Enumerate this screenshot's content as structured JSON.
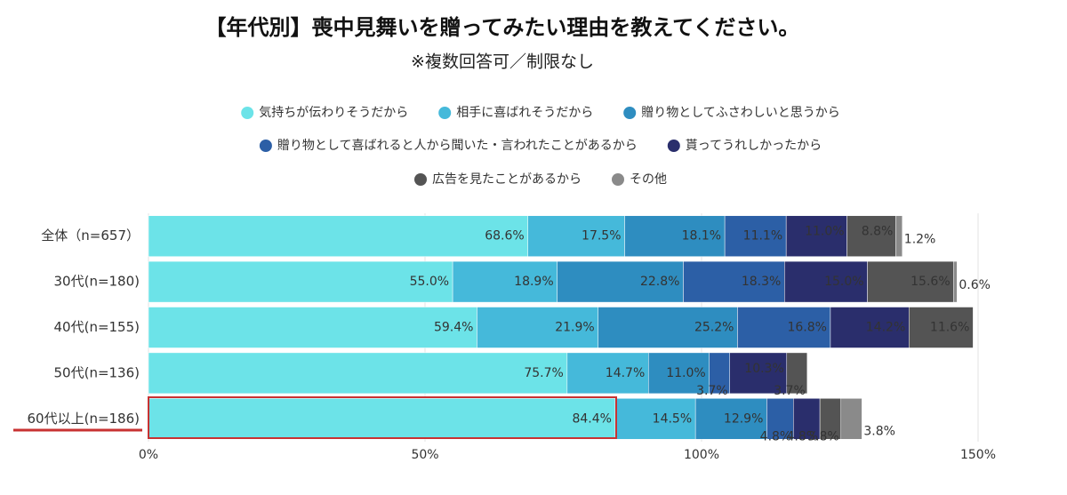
{
  "chart_data": {
    "type": "stacked-bar-horizontal",
    "title": "【年代別】喪中見舞いを贈ってみたい理由を教えてください。",
    "subtitle": "※複数回答可／制限なし",
    "categories": [
      "全体（n=657）",
      "30代(n=180)",
      "40代(n=155)",
      "50代(n=136)",
      "60代以上(n=186)"
    ],
    "series": [
      {
        "name": "気持ちが伝わりそうだから",
        "color": "#6ce3e8",
        "values": [
          68.6,
          55.0,
          59.4,
          75.7,
          84.4
        ],
        "value_labels": [
          "68.6%",
          "55.0%",
          "59.4%",
          "75.7%",
          "84.4%"
        ]
      },
      {
        "name": "相手に喜ばれそうだから",
        "color": "#45b9da",
        "values": [
          17.5,
          18.9,
          21.9,
          14.7,
          14.5
        ],
        "value_labels": [
          "17.5%",
          "18.9%",
          "21.9%",
          "14.7%",
          "14.5%"
        ]
      },
      {
        "name": "贈り物としてふさわしいと思うから",
        "color": "#2e8dc0",
        "values": [
          18.1,
          22.8,
          25.2,
          11.0,
          12.9
        ],
        "value_labels": [
          "18.1%",
          "22.8%",
          "25.2%",
          "11.0%",
          "12.9%"
        ]
      },
      {
        "name": "贈り物として喜ばれると人から聞いた・言われたことがあるから",
        "color": "#2c5fa6",
        "values": [
          11.1,
          18.3,
          16.8,
          3.7,
          4.8
        ],
        "value_labels": [
          "11.1%",
          "18.3%",
          "16.8%",
          "3.7%",
          "4.8%"
        ]
      },
      {
        "name": "貰ってうれしかったから",
        "color": "#2a2e6c",
        "values": [
          11.0,
          15.0,
          14.2,
          10.3,
          4.8
        ],
        "value_labels": [
          "11.0%",
          "15.0%",
          "14.2%",
          "10.3%",
          "4.8%"
        ]
      },
      {
        "name": "広告を見たことがあるから",
        "color": "#545454",
        "values": [
          8.8,
          15.6,
          11.6,
          3.7,
          3.8
        ],
        "value_labels": [
          "8.8%",
          "15.6%",
          "11.6%",
          "3.7%",
          "3.8%"
        ]
      },
      {
        "name": "その他",
        "color": "#8a8a8a",
        "values": [
          1.2,
          0.6,
          null,
          null,
          3.8
        ],
        "value_labels": [
          "1.2%",
          "0.6%",
          null,
          null,
          "3.8%"
        ]
      }
    ],
    "xlim": [
      0,
      150
    ],
    "xticks": [
      {
        "value": 0,
        "label": "0%"
      },
      {
        "value": 50,
        "label": "50%"
      },
      {
        "value": 100,
        "label": "100%"
      },
      {
        "value": 150,
        "label": "150%"
      }
    ],
    "grid": true
  }
}
